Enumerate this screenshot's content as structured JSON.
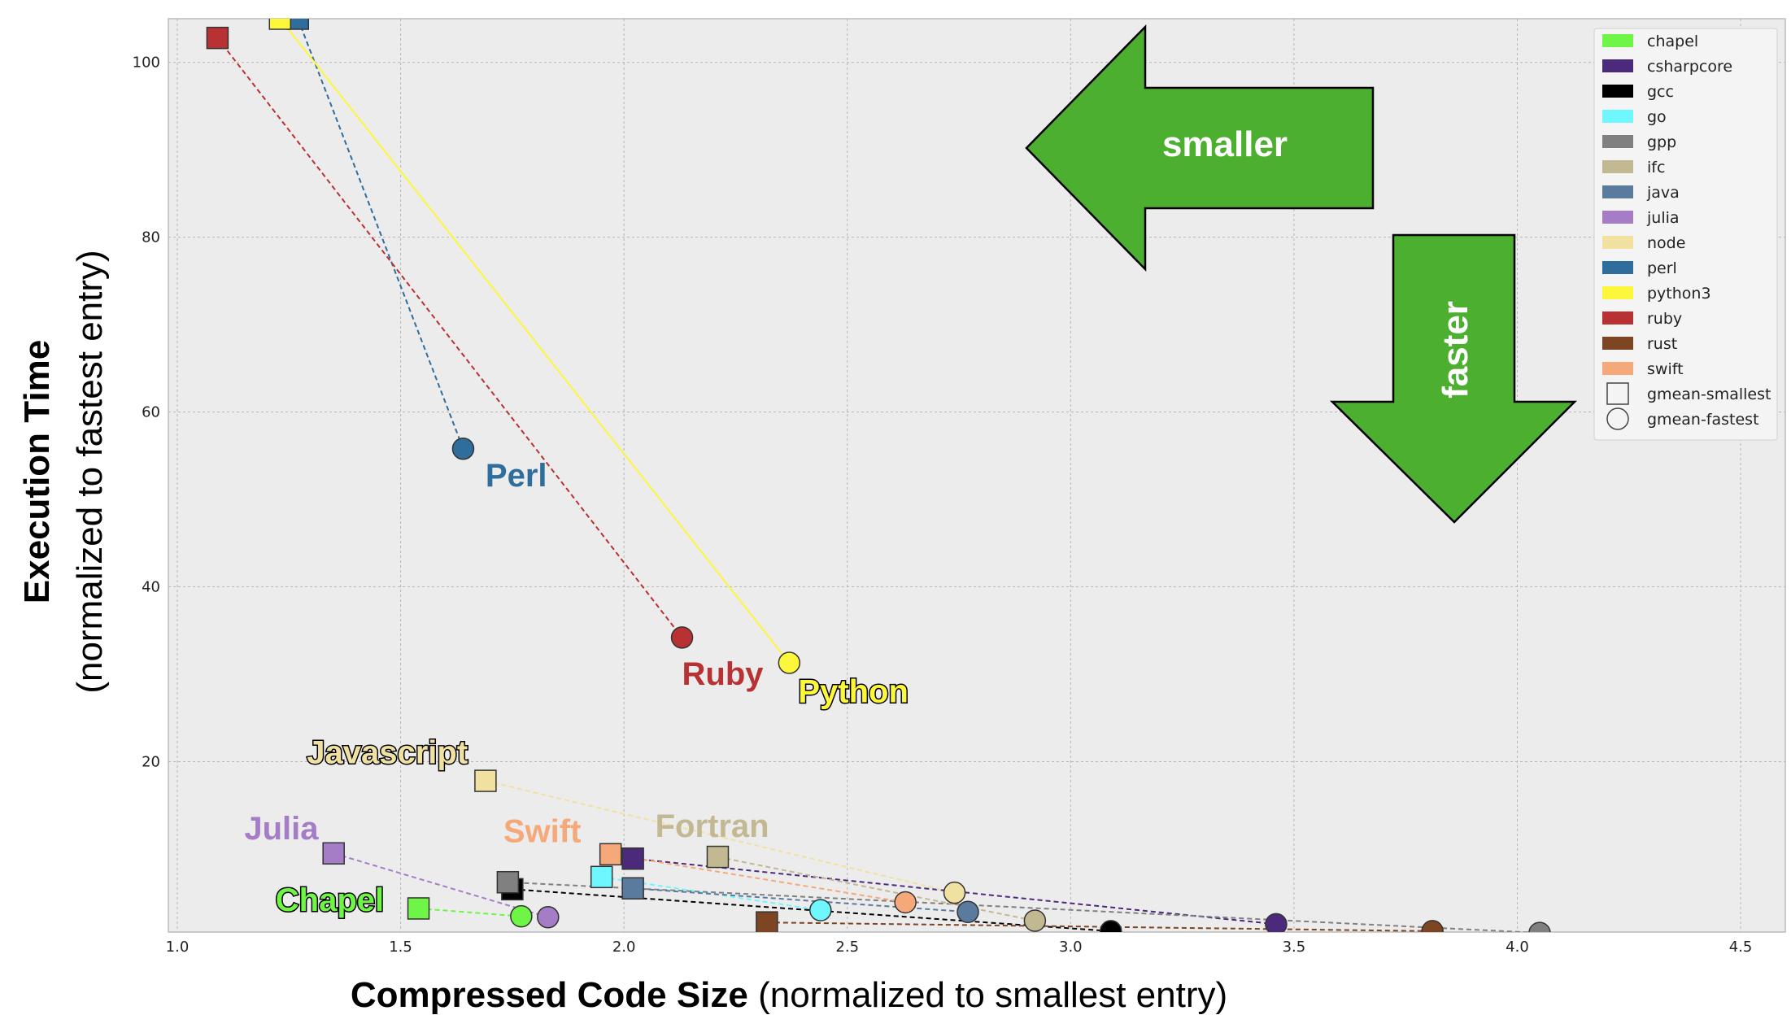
{
  "chart_data": {
    "type": "scatter",
    "xlabel_bold": "Compressed Code Size",
    "xlabel_rest": " (normalized to smallest entry)",
    "ylabel_bold": "Execution Time",
    "ylabel_rest": "(normalized to fastest entry)",
    "xlim": [
      0.98,
      4.6
    ],
    "ylim": [
      0.5,
      105
    ],
    "xticks": [
      1.0,
      1.5,
      2.0,
      2.5,
      3.0,
      3.5,
      4.0,
      4.5
    ],
    "xtick_labels": [
      "1.0",
      "1.5",
      "2.0",
      "2.5",
      "3.0",
      "3.5",
      "4.0",
      "4.5"
    ],
    "yticks": [
      20,
      40,
      60,
      80,
      100
    ],
    "ytick_labels": [
      "20",
      "40",
      "60",
      "80",
      "100"
    ],
    "grid": true,
    "legend_position": "top-right",
    "series": [
      {
        "name": "chapel",
        "color": "#6ef545",
        "dash": "dashed",
        "smallest": [
          1.54,
          3.2
        ],
        "fastest": [
          1.77,
          2.3
        ]
      },
      {
        "name": "csharpcore",
        "color": "#4b2a7c",
        "dash": "dashed",
        "smallest": [
          2.02,
          8.9
        ],
        "fastest": [
          3.46,
          1.4
        ]
      },
      {
        "name": "gcc",
        "color": "#000000",
        "dash": "dashed",
        "smallest": [
          1.75,
          5.4
        ],
        "fastest": [
          3.09,
          0.6
        ]
      },
      {
        "name": "go",
        "color": "#6ef7ff",
        "dash": "dashed",
        "smallest": [
          1.95,
          6.8
        ],
        "fastest": [
          2.44,
          3.0
        ]
      },
      {
        "name": "gpp",
        "color": "#808080",
        "dash": "dashed",
        "smallest": [
          1.74,
          6.2
        ],
        "fastest": [
          4.05,
          0.4
        ]
      },
      {
        "name": "ifc",
        "color": "#c2b891",
        "dash": "dashed",
        "smallest": [
          2.21,
          9.1
        ],
        "fastest": [
          2.92,
          1.8
        ]
      },
      {
        "name": "java",
        "color": "#5a7b9e",
        "dash": "dashed",
        "smallest": [
          2.02,
          5.5
        ],
        "fastest": [
          2.77,
          2.8
        ]
      },
      {
        "name": "julia",
        "color": "#a57cc6",
        "dash": "dashed",
        "smallest": [
          1.35,
          9.5
        ],
        "fastest": [
          1.83,
          2.2
        ]
      },
      {
        "name": "node",
        "color": "#f0e1a0",
        "dash": "dashed",
        "smallest": [
          1.69,
          17.8
        ],
        "fastest": [
          2.74,
          5.0
        ]
      },
      {
        "name": "perl",
        "color": "#2f6d9c",
        "dash": "dashed",
        "smallest": [
          1.27,
          105
        ],
        "fastest": [
          1.64,
          55.8
        ]
      },
      {
        "name": "python3",
        "color": "#fdf73c",
        "dash": "solid",
        "smallest": [
          1.23,
          105
        ],
        "fastest": [
          2.37,
          31.3
        ]
      },
      {
        "name": "ruby",
        "color": "#b83233",
        "dash": "dashed",
        "smallest": [
          1.09,
          102.8
        ],
        "fastest": [
          2.13,
          34.2
        ]
      },
      {
        "name": "rust",
        "color": "#7d4522",
        "dash": "dashed",
        "smallest": [
          2.32,
          1.6
        ],
        "fastest": [
          3.81,
          0.6
        ]
      },
      {
        "name": "swift",
        "color": "#f5a87a",
        "dash": "dashed",
        "smallest": [
          1.97,
          9.4
        ],
        "fastest": [
          2.63,
          3.9
        ]
      }
    ],
    "marker_legend": [
      {
        "name": "gmean-smallest",
        "shape": "square"
      },
      {
        "name": "gmean-fastest",
        "shape": "circle"
      }
    ],
    "annotations": [
      {
        "text": "Perl",
        "x": 1.69,
        "y": 51.5,
        "color": "#2f6d9c",
        "outline": false
      },
      {
        "text": "Ruby",
        "x": 2.13,
        "y": 28.8,
        "color": "#b83233",
        "outline": false
      },
      {
        "text": "Python",
        "x": 2.39,
        "y": 26.8,
        "color": "#fdf73c",
        "outline": true
      },
      {
        "text": "Javascript",
        "x": 1.29,
        "y": 19.8,
        "color": "#f0e1a0",
        "outline": true
      },
      {
        "text": "Julia",
        "x": 1.15,
        "y": 11.1,
        "color": "#a57cc6",
        "outline": false
      },
      {
        "text": "Swift",
        "x": 1.73,
        "y": 10.8,
        "color": "#f5a87a",
        "outline": false
      },
      {
        "text": "Fortran",
        "x": 2.07,
        "y": 11.4,
        "color": "#c2b891",
        "outline": false
      },
      {
        "text": "Chapel",
        "x": 1.22,
        "y": 2.9,
        "color": "#6ef545",
        "outline": true
      }
    ],
    "arrows": [
      {
        "text": "smaller",
        "direction": "left",
        "color": "#4caf30"
      },
      {
        "text": "faster",
        "direction": "down",
        "color": "#4caf30"
      }
    ]
  }
}
